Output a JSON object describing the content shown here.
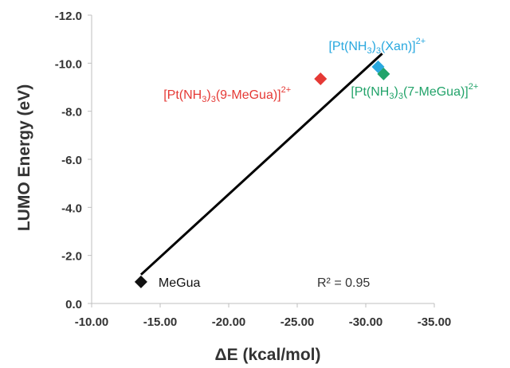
{
  "chart_data": {
    "type": "scatter",
    "xlabel": "ΔE (kcal/mol)",
    "ylabel": "LUMO Energy (eV)",
    "xlim": [
      -10,
      -35
    ],
    "ylim": [
      0,
      -12
    ],
    "x_ticks": [
      "-10.00",
      "-15.00",
      "-20.00",
      "-25.00",
      "-30.00",
      "-35.00"
    ],
    "y_ticks": [
      "0.0",
      "-2.0",
      "-4.0",
      "-6.0",
      "-8.0",
      "-10.0",
      "-12.0"
    ],
    "x_tick_values": [
      -10,
      -15,
      -20,
      -25,
      -30,
      -35
    ],
    "y_tick_values": [
      0,
      -2,
      -4,
      -6,
      -8,
      -10,
      -12
    ],
    "grid": false,
    "points": [
      {
        "x": -13.6,
        "y": -0.9,
        "color": "#111111",
        "label": {
          "base": "MeGua",
          "sub": "",
          "sup": ""
        }
      },
      {
        "x": -26.7,
        "y": -9.35,
        "color": "#e53935",
        "label": {
          "base": "[Pt(NH",
          "sub": "3",
          "mid": ")",
          "sub2": "3",
          "rest": "(9-MeGua)]",
          "sup": "2+"
        }
      },
      {
        "x": -30.9,
        "y": -9.85,
        "color": "#29a8df",
        "label": {
          "base": "[Pt(NH",
          "sub": "3",
          "mid": ")",
          "sub2": "3",
          "rest": "(Xan)]",
          "sup": "2+"
        }
      },
      {
        "x": -31.3,
        "y": -9.55,
        "color": "#22a36a",
        "label": {
          "base": "[Pt(NH",
          "sub": "3",
          "mid": ")",
          "sub2": "3",
          "rest": "(7-MeGua)]",
          "sup": "2+"
        }
      }
    ],
    "trendline": {
      "x": [
        -13.6,
        -31.2
      ],
      "y": [
        -1.2,
        -10.4
      ],
      "color": "#000000"
    },
    "annotation": "R² = 0.95"
  }
}
